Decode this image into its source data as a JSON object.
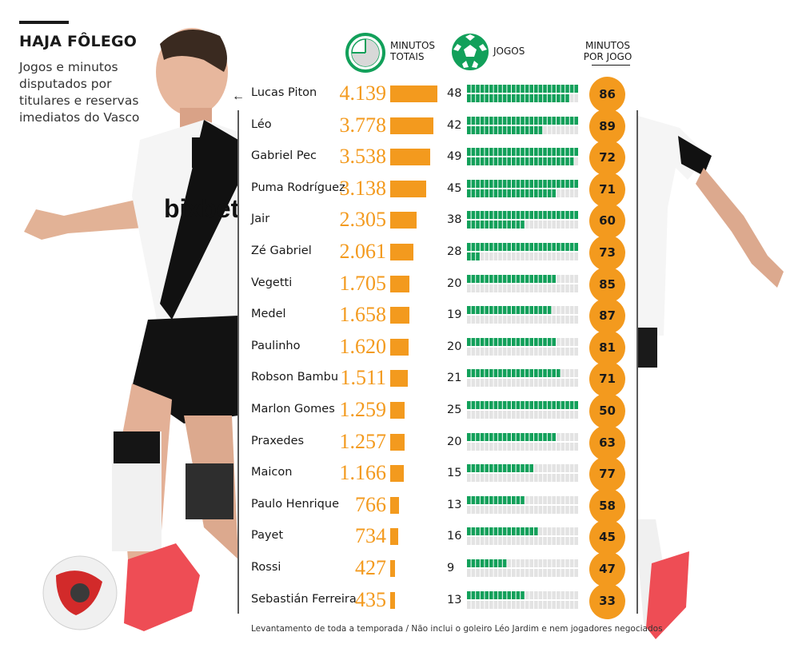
{
  "header": {
    "title": "HAJA FÔLEGO",
    "subtitle": "Jogos e minutos disputados por titulares e reservas imediatos do Vasco"
  },
  "columns": {
    "minutes_label": "MINUTOS\nTOTAIS",
    "games_label": "JOGOS",
    "avg_label": "MINUTOS\nPOR JOGO"
  },
  "rows": [
    {
      "name": "Lucas Piton",
      "minutes_label": "4.139",
      "games_label": "48",
      "avg_label": "86"
    },
    {
      "name": "Léo",
      "minutes_label": "3.778",
      "games_label": "42",
      "avg_label": "89"
    },
    {
      "name": "Gabriel Pec",
      "minutes_label": "3.538",
      "games_label": "49",
      "avg_label": "72"
    },
    {
      "name": "Puma Rodríguez",
      "minutes_label": "3.138",
      "games_label": "45",
      "avg_label": "71"
    },
    {
      "name": "Jair",
      "minutes_label": "2.305",
      "games_label": "38",
      "avg_label": "60"
    },
    {
      "name": "Zé Gabriel",
      "minutes_label": "2.061",
      "games_label": "28",
      "avg_label": "73"
    },
    {
      "name": "Vegetti",
      "minutes_label": "1.705",
      "games_label": "20",
      "avg_label": "85"
    },
    {
      "name": "Medel",
      "minutes_label": "1.658",
      "games_label": "19",
      "avg_label": "87"
    },
    {
      "name": "Paulinho",
      "minutes_label": "1.620",
      "games_label": "20",
      "avg_label": "81"
    },
    {
      "name": "Robson Bambu",
      "minutes_label": "1.511",
      "games_label": "21",
      "avg_label": "71"
    },
    {
      "name": "Marlon Gomes",
      "minutes_label": "1.259",
      "games_label": "25",
      "avg_label": "50"
    },
    {
      "name": "Praxedes",
      "minutes_label": "1.257",
      "games_label": "20",
      "avg_label": "63"
    },
    {
      "name": "Maicon",
      "minutes_label": "1.166",
      "games_label": "15",
      "avg_label": "77"
    },
    {
      "name": "Paulo Henrique",
      "minutes_label": "766",
      "games_label": "13",
      "avg_label": "58"
    },
    {
      "name": "Payet",
      "minutes_label": "734",
      "games_label": "16",
      "avg_label": "45"
    },
    {
      "name": "Rossi",
      "minutes_label": "427",
      "games_label": "9",
      "avg_label": "47"
    },
    {
      "name": "Sebastián Ferreira",
      "minutes_label": "435",
      "games_label": "13",
      "avg_label": "33"
    }
  ],
  "footnote": "Levantamento de toda a temporada /  Não inclui o goleiro Léo Jardim e nem jogadores negociados",
  "colors": {
    "orange": "#f39a1e",
    "green": "#12a05a",
    "gray": "#e3e3e3"
  },
  "icons": {
    "clock": "clock-icon",
    "ball": "soccer-ball-icon",
    "arrow": "left-arrow-icon"
  },
  "chart_data": {
    "type": "table",
    "series": [
      {
        "name": "MINUTOS TOTAIS",
        "values": [
          4139,
          3778,
          3538,
          3138,
          2305,
          2061,
          1705,
          1658,
          1620,
          1511,
          1259,
          1257,
          1166,
          766,
          734,
          427,
          435
        ]
      },
      {
        "name": "JOGOS",
        "values": [
          48,
          42,
          49,
          45,
          38,
          28,
          20,
          19,
          20,
          21,
          25,
          20,
          15,
          13,
          16,
          9,
          13
        ]
      },
      {
        "name": "MINUTOS POR JOGO",
        "values": [
          86,
          89,
          72,
          71,
          60,
          73,
          85,
          87,
          81,
          71,
          50,
          63,
          77,
          58,
          45,
          47,
          33
        ]
      }
    ],
    "categories": [
      "Lucas Piton",
      "Léo",
      "Gabriel Pec",
      "Puma Rodríguez",
      "Jair",
      "Zé Gabriel",
      "Vegetti",
      "Medel",
      "Paulinho",
      "Robson Bambu",
      "Marlon Gomes",
      "Praxedes",
      "Maicon",
      "Paulo Henrique",
      "Payet",
      "Rossi",
      "Sebastián Ferreira"
    ],
    "minutes_max": 4139,
    "games_capacity": 50
  }
}
